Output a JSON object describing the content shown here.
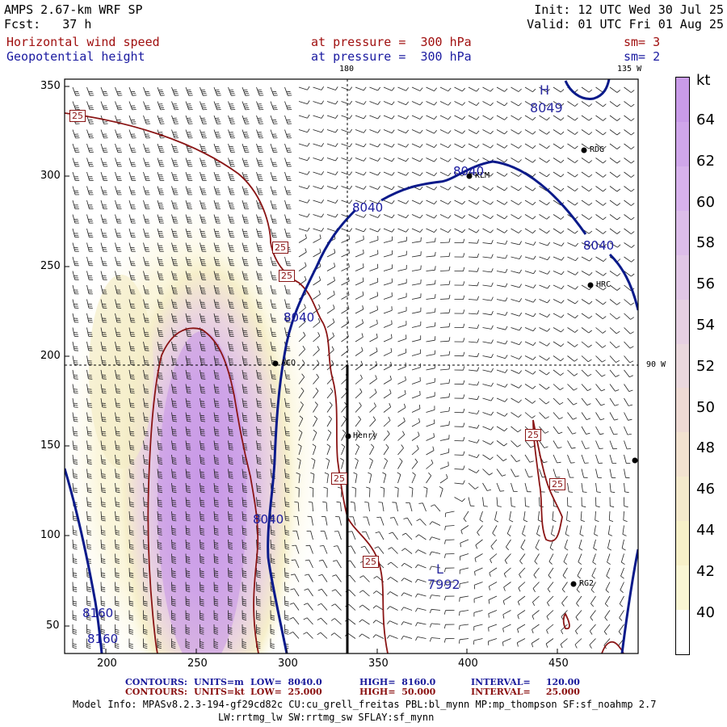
{
  "header": {
    "model": "AMPS 2.67-km WRF SP",
    "forecast": "Fcst:   37 h",
    "init": "Init: 12 UTC Wed 30 Jul 25",
    "valid": "Valid: 01 UTC Fri 01 Aug 25",
    "field1": "Horizontal wind speed",
    "field1_level": "at pressure =  300 hPa",
    "field1_sm": "sm= 3",
    "field2": "Geopotential height",
    "field2_level": "at pressure =  300 hPa",
    "field2_sm": "sm= 2"
  },
  "map": {
    "x_ticks": [
      "200",
      "250",
      "300",
      "350",
      "400",
      "450"
    ],
    "y_ticks": [
      "300",
      "250",
      "200",
      "150",
      "100",
      "50"
    ],
    "y_top": "350",
    "meridian_180": "180",
    "meridian_135w": "135 W",
    "meridian_90w": "90 W",
    "stations": [
      "RDG",
      "KLM",
      "HRC",
      "ACO",
      "Henry",
      "RG2"
    ],
    "high_marker": "H",
    "high_value": "8049",
    "low_marker": "L",
    "low_value": "7992",
    "height_labels": [
      "8040",
      "8040",
      "8040",
      "8040",
      "8040",
      "8040",
      "8160",
      "8160"
    ],
    "wind_labels": [
      "25",
      "25",
      "25",
      "25",
      "25",
      "25"
    ]
  },
  "colorbar": {
    "unit": "kt",
    "levels": [
      "64",
      "62",
      "60",
      "58",
      "56",
      "54",
      "52",
      "50",
      "48",
      "46",
      "44",
      "42",
      "40"
    ],
    "colors": [
      "#c89be8",
      "#cfa6ea",
      "#d7b2ec",
      "#dcbde9",
      "#e1c7e6",
      "#e6d0e2",
      "#ead8dd",
      "#eedad4",
      "#f2e2d0",
      "#f4e9cc",
      "#f7f0c8",
      "#faf6d4",
      "#ffffff"
    ]
  },
  "footer": {
    "contours_label": "CONTOURS:",
    "units_m": "UNITS=m",
    "low1": "LOW=  8040.0",
    "high1": "HIGH=  8160.0",
    "interval1": "INTERVAL=     120.00",
    "units_kt": "UNITS=kt",
    "low2": "LOW=  25.000",
    "high2": "HIGH=  50.000",
    "interval2": "INTERVAL=     25.000",
    "model_info": "Model Info: MPASv8.2.3-194-gf29cd82c CU:cu_grell_freitas PBL:bl_mynn MP:mp_thompson SF:sf_noahmp 2.7",
    "physics": "LW:rrtmg_lw SW:rrtmg_sw SFLAY:sf_mynn"
  }
}
